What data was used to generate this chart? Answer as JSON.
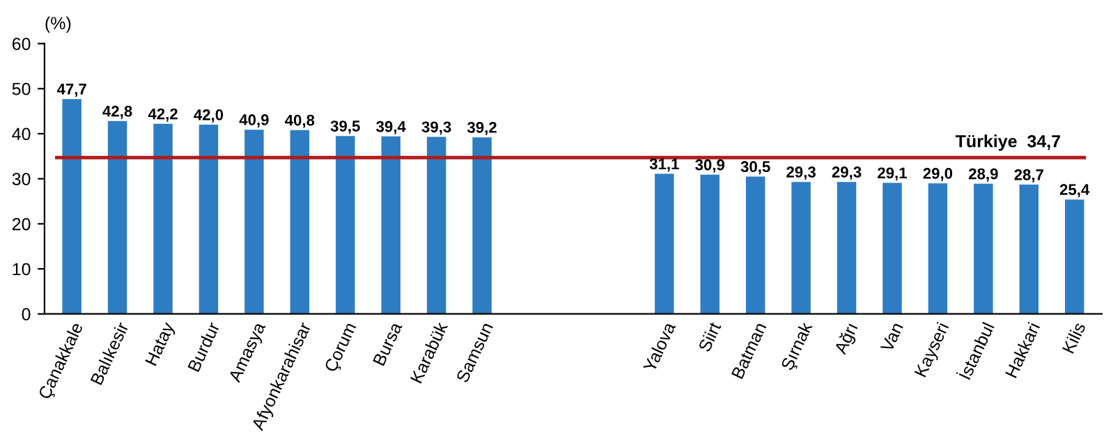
{
  "chart_data": {
    "type": "bar",
    "ylabel": "(%)",
    "categories": [
      "Çanakkale",
      "Balıkesir",
      "Hatay",
      "Burdur",
      "Amasya",
      "Afyonkarahisar",
      "Çorum",
      "Bursa",
      "Karabük",
      "Samsun",
      null,
      null,
      null,
      "Yalova",
      "Siirt",
      "Batman",
      "Şırnak",
      "Ağrı",
      "Van",
      "Kayseri",
      "İstanbul",
      "Hakkari",
      "Kilis"
    ],
    "values": [
      47.7,
      42.8,
      42.2,
      42.0,
      40.9,
      40.8,
      39.5,
      39.4,
      39.3,
      39.2,
      null,
      null,
      null,
      31.1,
      30.9,
      30.5,
      29.3,
      29.3,
      29.1,
      29.0,
      28.9,
      28.7,
      25.4
    ],
    "value_labels": [
      "47,7",
      "42,8",
      "42,2",
      "42,0",
      "40,9",
      "40,8",
      "39,5",
      "39,4",
      "39,3",
      "39,2",
      null,
      null,
      null,
      "31,1",
      "30,9",
      "30,5",
      "29,3",
      "29,3",
      "29,1",
      "29,0",
      "28,9",
      "28,7",
      "25,4"
    ],
    "color": "#2e7dc2",
    "ylim": [
      0,
      60
    ],
    "yticks": [
      0,
      10,
      20,
      30,
      40,
      50,
      60
    ],
    "ref_lines": [
      {
        "axis": "y",
        "value": 34.7,
        "label": "Türkiye  34,7",
        "color": "#b01c1c",
        "line_style": "solid"
      }
    ],
    "grid": false,
    "legend": false
  }
}
